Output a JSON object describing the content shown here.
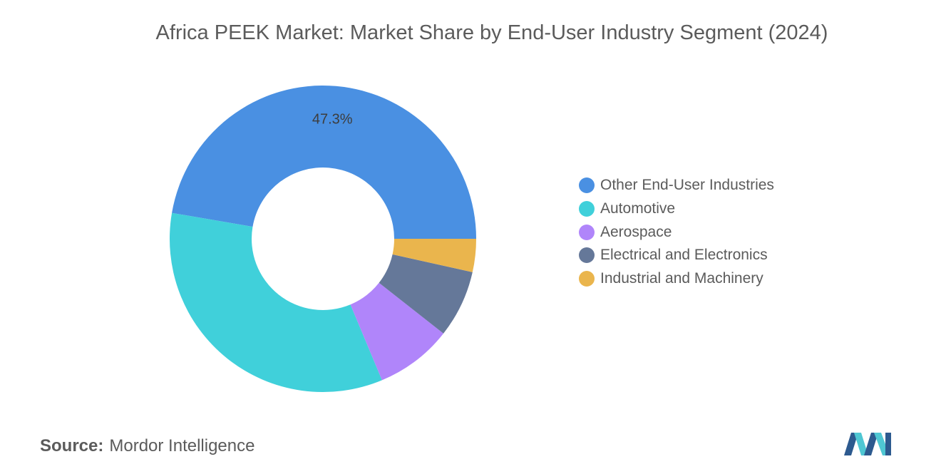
{
  "chart_data": {
    "type": "pie",
    "title": "Africa PEEK Market: Market Share by End-User Industry Segment (2024)",
    "donut": true,
    "slices": [
      {
        "label": "Other End-User Industries",
        "value": 47.3,
        "color": "#4a90e2",
        "show_label": "47.3%"
      },
      {
        "label": "Automotive",
        "value": 34.0,
        "color": "#40d0da",
        "show_label": ""
      },
      {
        "label": "Aerospace",
        "value": 8.1,
        "color": "#b085fa",
        "show_label": ""
      },
      {
        "label": "Electrical and Electronics",
        "value": 7.1,
        "color": "#657899",
        "show_label": ""
      },
      {
        "label": "Industrial and Machinery",
        "value": 3.5,
        "color": "#eab54d",
        "show_label": ""
      }
    ],
    "legend_position": "right"
  },
  "source": {
    "label": "Source:",
    "text": "Mordor Intelligence"
  }
}
